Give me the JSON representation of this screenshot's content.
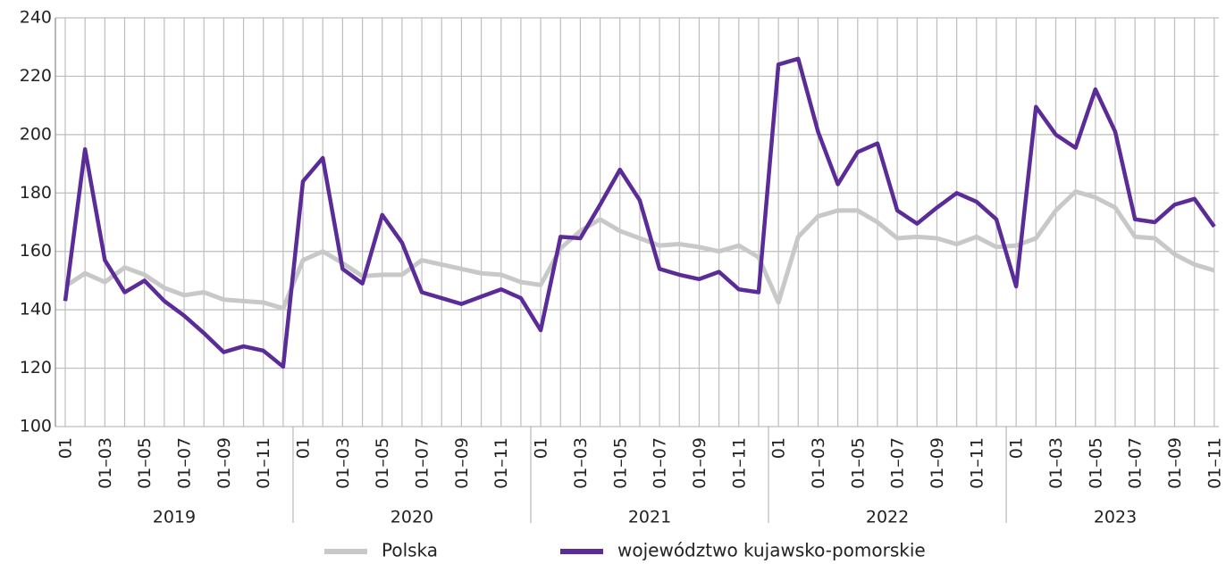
{
  "chart_data": {
    "type": "line",
    "categories": [
      "01",
      null,
      "01–03",
      null,
      "01–05",
      null,
      "01–07",
      null,
      "01–09",
      null,
      "01–11",
      null,
      "01",
      null,
      "01–03",
      null,
      "01–05",
      null,
      "01–07",
      null,
      "01–09",
      null,
      "01–11",
      null,
      "01",
      null,
      "01–03",
      null,
      "01–05",
      null,
      "01–07",
      null,
      "01–09",
      null,
      "01–11",
      null,
      "01",
      null,
      "01–03",
      null,
      "01–05",
      null,
      "01–07",
      null,
      "01–09",
      null,
      "01–11",
      null,
      "01",
      null,
      "01–03",
      null,
      "01–05",
      null,
      "01–07",
      null,
      "01–09",
      null,
      "01–11"
    ],
    "years": [
      "2019",
      "2020",
      "2021",
      "2022",
      "2023"
    ],
    "series": [
      {
        "name": "Polska",
        "color": "#c8c8c8",
        "values": [
          148,
          152.5,
          149.5,
          154.5,
          152,
          147.5,
          145,
          146,
          143.5,
          143,
          142.5,
          140.5,
          157,
          160,
          156,
          151.5,
          152,
          152,
          157,
          155.5,
          154,
          152.5,
          152,
          149.5,
          148.5,
          161,
          167,
          171,
          167,
          164.5,
          162,
          162.5,
          161.5,
          160,
          162,
          158,
          142.5,
          165,
          172,
          174,
          174,
          170,
          164.5,
          165,
          164.5,
          162.5,
          165,
          161.5,
          162,
          164.5,
          174,
          180.5,
          178.5,
          175,
          165,
          164.5,
          159,
          155.5,
          153.5
        ]
      },
      {
        "name": "województwo kujawsko-pomorskie",
        "color": "#5b2c98",
        "values": [
          143,
          195,
          157,
          146,
          150,
          143,
          138,
          132,
          125.5,
          127.5,
          126,
          120.5,
          184,
          192,
          154,
          149,
          172.5,
          163,
          146,
          144,
          142,
          144.5,
          147,
          144,
          133,
          165,
          164.5,
          176,
          188,
          177.5,
          154,
          152,
          150.5,
          153,
          147,
          146,
          224,
          226,
          201,
          183,
          194,
          197,
          174,
          169.5,
          175,
          180,
          177,
          171,
          148,
          209.5,
          200,
          195.5,
          215.5,
          201,
          171,
          170,
          176,
          178,
          168.5
        ]
      }
    ],
    "ylim": [
      100,
      240
    ],
    "yticks": [
      100,
      120,
      140,
      160,
      180,
      200,
      220,
      240
    ],
    "grid": true
  }
}
